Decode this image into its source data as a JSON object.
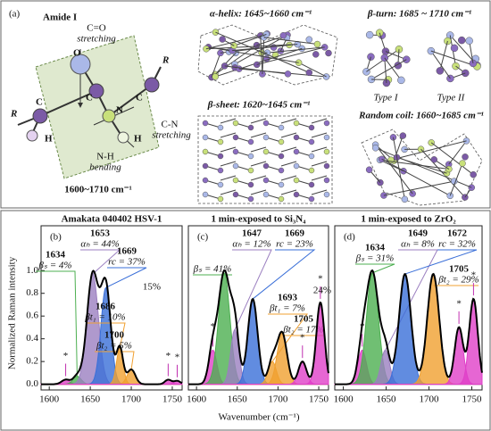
{
  "panel_a": {
    "label": "(a)",
    "title": "Amide I",
    "atoms": {
      "o": "O",
      "c1": "C",
      "c2": "C",
      "c3": "C",
      "n": "N",
      "h1": "H",
      "h2": "H",
      "r1": "R",
      "r2": "R"
    },
    "co": "C=O",
    "co_mode": "stretching",
    "cn": "C-N",
    "cn_mode": "stretching",
    "nh": "N-H",
    "nh_mode": "bending",
    "range": "1600~1710 cm⁻¹",
    "helix": "α-helix: 1645~1660 cm⁻¹",
    "turn": "β-turn:  1685 ~ 1710 cm⁻¹",
    "type1": "Type I",
    "type2": "Type II",
    "sheet": "β-sheet: 1620~1645 cm⁻¹",
    "coil": "Random coil: 1660~1685 cm⁻¹"
  },
  "chart_data": [
    {
      "type": "peaks",
      "label": "(b)",
      "title": "Amakata 040402 HSV-1",
      "ylabel": "Normalized Raman intensity",
      "xlim": [
        1590,
        1762
      ],
      "xticks": [
        1600,
        1650,
        1700,
        1750
      ],
      "ylim": [
        -0.05,
        1.3
      ],
      "yticks": [
        {
          "value": 0,
          "label": "0.0"
        },
        0.2,
        0.4,
        0.6,
        0.8,
        {
          "value": 1,
          "label": "1.0"
        }
      ],
      "annotation": "15%",
      "peaks": [
        {
          "center": 1620,
          "height": 0.04,
          "width": 5,
          "color": "#e040c8",
          "asterisk": "*"
        },
        {
          "center": 1634,
          "height": 0.07,
          "width": 5,
          "color": "#4caf50",
          "center_printed": true,
          "fraction": 4,
          "fraction_label": "βₛ = 4%"
        },
        {
          "center": 1653,
          "height": 0.97,
          "width": 7,
          "color": "#9b7fc0",
          "center_printed": true,
          "fraction": 44,
          "fraction_label": "αₕ = 44%"
        },
        {
          "center": 1669,
          "height": 0.85,
          "width": 6,
          "color": "#3a6fd8",
          "center_printed": true,
          "fraction": 37,
          "fraction_label": "rc = 37%"
        },
        {
          "center": 1686,
          "height": 0.32,
          "width": 4,
          "color": "#f0a030",
          "center_printed": true,
          "fraction": 10,
          "fraction_label": "βt₁ = 10%"
        },
        {
          "center": 1700,
          "height": 0.13,
          "width": 5,
          "color": "#f0a030",
          "center_printed": true,
          "fraction": 5,
          "fraction_label": "βt₂ = 5%"
        },
        {
          "center": 1745,
          "height": 0.04,
          "width": 4,
          "color": "#e040c8",
          "asterisk": "*"
        },
        {
          "center": 1756,
          "height": 0.03,
          "width": 4,
          "color": "#e040c8",
          "asterisk": "*"
        }
      ]
    },
    {
      "type": "peaks",
      "label": "(c)",
      "title": "1 min-exposed to Si₃N₄",
      "xlabel": "Wavenumber (cm⁻¹)",
      "xlim": [
        1590,
        1762
      ],
      "xticks": [
        1600,
        1650,
        1700,
        1750
      ],
      "ylim": [
        -0.05,
        1.3
      ],
      "annotation": "24%",
      "peaks": [
        {
          "center": 1620,
          "height": 0.3,
          "width": 5,
          "color": "#e040c8",
          "asterisk": "*"
        },
        {
          "center": 1634,
          "height": 0.98,
          "width": 7,
          "color": "#4caf50",
          "fraction": 41,
          "fraction_label": "βₛ = 41%"
        },
        {
          "center": 1647,
          "height": 0.48,
          "width": 5,
          "color": "#9b7fc0",
          "center_printed": true,
          "fraction": 12,
          "fraction_label": "αₕ = 12%"
        },
        {
          "center": 1669,
          "height": 0.75,
          "width": 6,
          "color": "#3a6fd8",
          "center_printed": true,
          "fraction": 23,
          "fraction_label": "rc = 23%"
        },
        {
          "center": 1693,
          "height": 0.2,
          "width": 5,
          "color": "#f0a030",
          "center_printed": true,
          "fraction": 7,
          "fraction_label": "βt₁ = 7%"
        },
        {
          "center": 1705,
          "height": 0.45,
          "width": 6,
          "color": "#f0a030",
          "center_printed": true,
          "fraction": 17,
          "fraction_label": "βt₂ = 17%"
        },
        {
          "center": 1730,
          "height": 0.2,
          "width": 5,
          "color": "#e040c8",
          "asterisk": "*"
        },
        {
          "center": 1752,
          "height": 0.72,
          "width": 5,
          "color": "#e040c8",
          "asterisk": "*"
        }
      ]
    },
    {
      "type": "peaks",
      "label": "(d)",
      "title": "1 min-exposed to ZrO₂",
      "xlim": [
        1590,
        1762
      ],
      "xticks": [
        1600,
        1650,
        1700,
        1750
      ],
      "ylim": [
        -0.05,
        1.3
      ],
      "peaks": [
        {
          "center": 1622,
          "height": 0.3,
          "width": 5,
          "color": "#e040c8",
          "asterisk": "*"
        },
        {
          "center": 1634,
          "height": 0.98,
          "width": 7,
          "color": "#4caf50",
          "center_printed": true,
          "fraction": 31,
          "fraction_label": "βₛ = 31%"
        },
        {
          "center": 1649,
          "height": 0.3,
          "width": 5,
          "color": "#9b7fc0",
          "center_printed": true,
          "fraction": 8,
          "fraction_label": "αₕ = 8%"
        },
        {
          "center": 1672,
          "height": 0.97,
          "width": 7,
          "color": "#3a6fd8",
          "center_printed": true,
          "fraction": 32,
          "fraction_label": "rc = 32%"
        },
        {
          "center": 1705,
          "height": 0.97,
          "width": 7,
          "color": "#f0a030",
          "center_printed": true,
          "fraction": 29,
          "fraction_label": "βt₂ = 29%"
        },
        {
          "center": 1735,
          "height": 0.5,
          "width": 5,
          "color": "#e040c8",
          "asterisk": "*"
        },
        {
          "center": 1752,
          "height": 0.75,
          "width": 5,
          "color": "#e040c8",
          "asterisk": "*"
        }
      ]
    }
  ]
}
